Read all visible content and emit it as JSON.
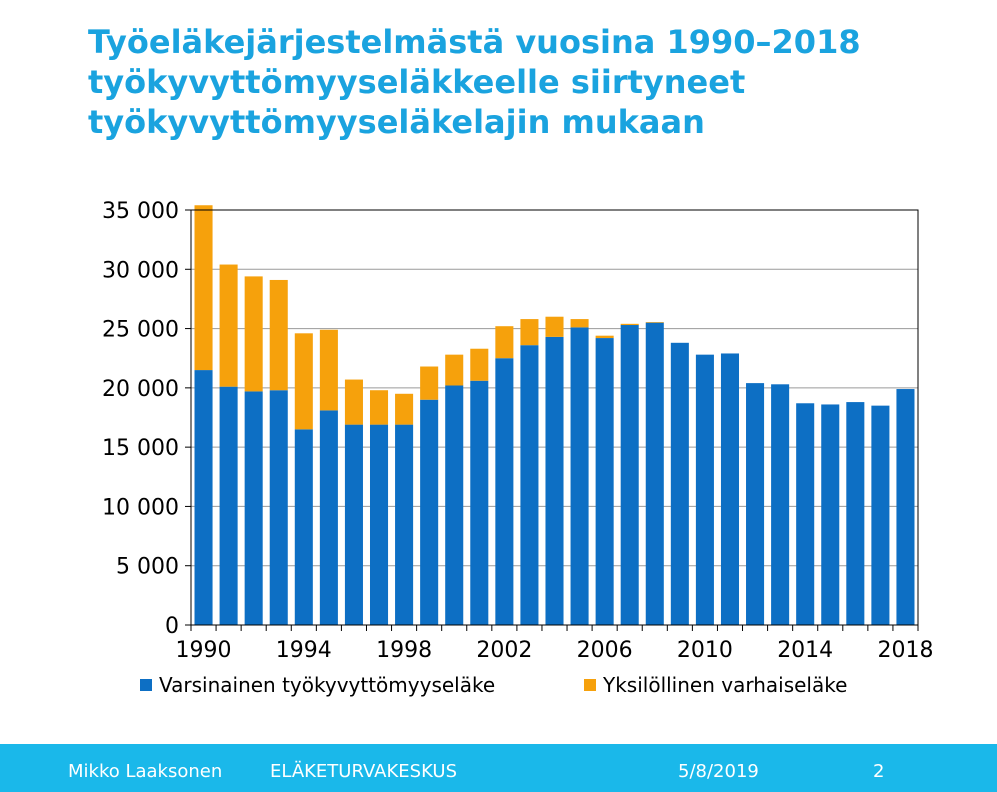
{
  "slide": {
    "title_lines": [
      "Työeläkejärjestelmästä vuosina 1990–2018",
      "työkyvyttömyyseläkkeelle siirtyneet",
      "työkyvyttömyyseläkelajin mukaan"
    ],
    "footer": {
      "author": "Mikko Laaksonen",
      "organization": "ELÄKETURVAKESKUS",
      "date": "5/8/2019",
      "page": "2"
    }
  },
  "colors": {
    "title": "#1aa3df",
    "footer_bg": "#1ab8ea",
    "series_blue": "#0d6fc4",
    "series_orange": "#f6a10c"
  },
  "chart_data": {
    "type": "bar",
    "stacked": true,
    "x": [
      1990,
      1991,
      1992,
      1993,
      1994,
      1995,
      1996,
      1997,
      1998,
      1999,
      2000,
      2001,
      2002,
      2003,
      2004,
      2005,
      2006,
      2007,
      2008,
      2009,
      2010,
      2011,
      2012,
      2013,
      2014,
      2015,
      2016,
      2017,
      2018
    ],
    "x_tick_labels": [
      "1990",
      "1994",
      "1998",
      "2002",
      "2006",
      "2010",
      "2014",
      "2018"
    ],
    "series": [
      {
        "name": "Varsinainen työkyvyttömyyseläke",
        "color": "#0d6fc4",
        "values": [
          21500,
          20100,
          19700,
          19800,
          16500,
          18100,
          16900,
          16900,
          16900,
          19000,
          20200,
          20600,
          22500,
          23600,
          24300,
          25100,
          24200,
          25300,
          25500,
          23800,
          22800,
          22900,
          20400,
          20300,
          18700,
          18600,
          18800,
          18500,
          19900
        ]
      },
      {
        "name": "Yksilöllinen varhaiseläke",
        "color": "#f6a10c",
        "values": [
          13900,
          10300,
          9700,
          9300,
          8100,
          6800,
          3800,
          2900,
          2600,
          2800,
          2600,
          2700,
          2700,
          2200,
          1700,
          700,
          200,
          100,
          50,
          0,
          0,
          0,
          0,
          0,
          0,
          0,
          0,
          0,
          0
        ]
      }
    ],
    "ylim": [
      0,
      35000
    ],
    "y_ticks": [
      0,
      5000,
      10000,
      15000,
      20000,
      25000,
      30000,
      35000
    ],
    "y_tick_labels": [
      "0",
      "5 000",
      "10 000",
      "15 000",
      "20 000",
      "25 000",
      "30 000",
      "35 000"
    ],
    "grid": true,
    "legend_position": "bottom"
  }
}
